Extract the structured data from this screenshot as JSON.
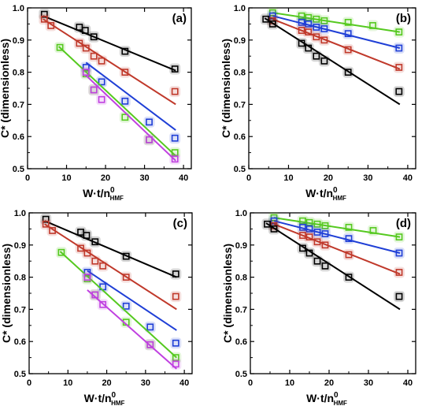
{
  "figure": {
    "width_label": "",
    "note": ""
  },
  "chart_data": [
    {
      "type": "scatter",
      "panel_label": "(a)",
      "xlabel_main": "W·t/n",
      "xlabel_sup": "0",
      "xlabel_sub": "HMF",
      "ylabel": "C* (dimensionless)",
      "xlim": [
        0,
        42
      ],
      "ylim": [
        0.5,
        1.0
      ],
      "xticks": [
        0,
        10,
        20,
        30,
        40
      ],
      "yticks": [
        0.5,
        0.6,
        0.7,
        0.8,
        0.9,
        1.0
      ],
      "series": [
        {
          "color": "#000000",
          "points": [
            [
              4.3,
              0.98
            ],
            [
              13.3,
              0.94
            ],
            [
              14.8,
              0.93
            ],
            [
              17.0,
              0.91
            ],
            [
              25.0,
              0.865
            ],
            [
              37.8,
              0.81
            ]
          ],
          "fit": [
            [
              4,
              0.975
            ],
            [
              38,
              0.805
            ]
          ]
        },
        {
          "color": "#c0392b",
          "points": [
            [
              4.3,
              0.965
            ],
            [
              6.0,
              0.945
            ],
            [
              13.3,
              0.89
            ],
            [
              15.0,
              0.875
            ],
            [
              17.0,
              0.85
            ],
            [
              19.0,
              0.835
            ],
            [
              25.0,
              0.8
            ],
            [
              37.8,
              0.74
            ]
          ],
          "fit": [
            [
              4,
              0.965
            ],
            [
              38,
              0.7
            ]
          ]
        },
        {
          "color": "#1f3fd6",
          "points": [
            [
              15.0,
              0.815
            ],
            [
              19.0,
              0.77
            ],
            [
              25.0,
              0.71
            ],
            [
              31.2,
              0.645
            ],
            [
              37.8,
              0.595
            ]
          ],
          "fit": [
            [
              15,
              0.83
            ],
            [
              38,
              0.62
            ]
          ]
        },
        {
          "color": "#55c91f",
          "points": [
            [
              8.3,
              0.877
            ],
            [
              15.0,
              0.795
            ],
            [
              17.0,
              0.745
            ],
            [
              25.0,
              0.66
            ],
            [
              31.2,
              0.59
            ],
            [
              37.8,
              0.55
            ]
          ],
          "fit": [
            [
              8,
              0.88
            ],
            [
              38,
              0.54
            ]
          ]
        },
        {
          "color": "#c040e0",
          "points": [
            [
              15.0,
              0.8
            ],
            [
              17.0,
              0.745
            ],
            [
              19.0,
              0.715
            ],
            [
              31.2,
              0.59
            ],
            [
              37.8,
              0.53
            ]
          ],
          "fit": [
            [
              15,
              0.79
            ],
            [
              38,
              0.525
            ]
          ]
        }
      ]
    },
    {
      "type": "scatter",
      "panel_label": "(b)",
      "xlabel_main": "W·t/n",
      "xlabel_sup": "0",
      "xlabel_sub": "HMF",
      "ylabel": "C* (dimensionless)",
      "xlim": [
        0,
        42
      ],
      "ylim": [
        0.5,
        1.0
      ],
      "xticks": [
        0,
        10,
        20,
        30,
        40
      ],
      "yticks": [
        0.5,
        0.6,
        0.7,
        0.8,
        0.9,
        1.0
      ],
      "series": [
        {
          "color": "#55c91f",
          "points": [
            [
              6.0,
              0.985
            ],
            [
              13.3,
              0.975
            ],
            [
              15.0,
              0.97
            ],
            [
              17.0,
              0.965
            ],
            [
              19.0,
              0.96
            ],
            [
              25.0,
              0.955
            ],
            [
              31.2,
              0.945
            ],
            [
              37.8,
              0.925
            ]
          ],
          "fit": [
            [
              6,
              0.985
            ],
            [
              38,
              0.925
            ]
          ]
        },
        {
          "color": "#1f3fd6",
          "points": [
            [
              6.0,
              0.975
            ],
            [
              13.3,
              0.955
            ],
            [
              15.0,
              0.95
            ],
            [
              17.0,
              0.94
            ],
            [
              19.0,
              0.935
            ],
            [
              25.0,
              0.92
            ],
            [
              37.8,
              0.875
            ]
          ],
          "fit": [
            [
              6,
              0.975
            ],
            [
              38,
              0.875
            ]
          ]
        },
        {
          "color": "#c0392b",
          "points": [
            [
              6.0,
              0.96
            ],
            [
              13.3,
              0.93
            ],
            [
              15.0,
              0.925
            ],
            [
              17.0,
              0.91
            ],
            [
              19.0,
              0.9
            ],
            [
              25.0,
              0.87
            ],
            [
              37.8,
              0.815
            ]
          ],
          "fit": [
            [
              6,
              0.965
            ],
            [
              38,
              0.81
            ]
          ]
        },
        {
          "color": "#000000",
          "points": [
            [
              4.3,
              0.965
            ],
            [
              6.0,
              0.95
            ],
            [
              13.3,
              0.89
            ],
            [
              15.0,
              0.875
            ],
            [
              17.0,
              0.85
            ],
            [
              19.0,
              0.835
            ],
            [
              25.0,
              0.8
            ],
            [
              37.8,
              0.74
            ]
          ],
          "fit": [
            [
              4,
              0.968
            ],
            [
              38,
              0.7
            ]
          ]
        }
      ]
    },
    {
      "type": "scatter",
      "panel_label": "(c)",
      "xlabel_main": "W·t/n",
      "xlabel_sup": "0",
      "xlabel_sub": "HMF",
      "ylabel": "C* (dimensionless)",
      "xlim": [
        0,
        42
      ],
      "ylim": [
        0.5,
        1.0
      ],
      "xticks": [
        0,
        10,
        20,
        30,
        40
      ],
      "yticks": [
        0.5,
        0.6,
        0.7,
        0.8,
        0.9,
        1.0
      ],
      "series": [
        {
          "color": "#000000",
          "points": [
            [
              4.3,
              0.98
            ],
            [
              13.3,
              0.94
            ],
            [
              14.8,
              0.93
            ],
            [
              17.0,
              0.91
            ],
            [
              25.0,
              0.865
            ],
            [
              37.8,
              0.81
            ]
          ],
          "fit": [
            [
              4,
              0.975
            ],
            [
              38,
              0.8
            ]
          ]
        },
        {
          "color": "#c0392b",
          "points": [
            [
              4.3,
              0.965
            ],
            [
              6.0,
              0.945
            ],
            [
              13.3,
              0.89
            ],
            [
              15.0,
              0.875
            ],
            [
              17.0,
              0.85
            ],
            [
              19.0,
              0.835
            ],
            [
              25.0,
              0.8
            ],
            [
              37.8,
              0.74
            ]
          ],
          "fit": [
            [
              4,
              0.965
            ],
            [
              38,
              0.7
            ]
          ]
        },
        {
          "color": "#1f3fd6",
          "points": [
            [
              15.0,
              0.815
            ],
            [
              19.0,
              0.77
            ],
            [
              25.0,
              0.71
            ],
            [
              31.2,
              0.645
            ],
            [
              37.8,
              0.595
            ]
          ],
          "fit": [
            [
              15,
              0.82
            ],
            [
              38,
              0.635
            ]
          ]
        },
        {
          "color": "#55c91f",
          "points": [
            [
              8.3,
              0.877
            ],
            [
              15.0,
              0.795
            ],
            [
              17.0,
              0.745
            ],
            [
              25.0,
              0.66
            ],
            [
              31.2,
              0.59
            ],
            [
              37.8,
              0.55
            ]
          ],
          "fit": [
            [
              8,
              0.88
            ],
            [
              38,
              0.55
            ]
          ]
        },
        {
          "color": "#c040e0",
          "points": [
            [
              15.0,
              0.8
            ],
            [
              17.0,
              0.745
            ],
            [
              19.0,
              0.715
            ],
            [
              31.2,
              0.59
            ],
            [
              37.8,
              0.53
            ]
          ],
          "fit": [
            [
              15,
              0.76
            ],
            [
              38,
              0.515
            ]
          ]
        }
      ]
    },
    {
      "type": "scatter",
      "panel_label": "(d)",
      "xlabel_main": "W·t/n",
      "xlabel_sup": "0",
      "xlabel_sub": "HMF",
      "ylabel": "C* (dimensionless)",
      "xlim": [
        0,
        42
      ],
      "ylim": [
        0.5,
        1.0
      ],
      "xticks": [
        0,
        10,
        20,
        30,
        40
      ],
      "yticks": [
        0.5,
        0.6,
        0.7,
        0.8,
        0.9,
        1.0
      ],
      "series": [
        {
          "color": "#55c91f",
          "points": [
            [
              6.0,
              0.985
            ],
            [
              13.3,
              0.975
            ],
            [
              15.0,
              0.97
            ],
            [
              17.0,
              0.965
            ],
            [
              19.0,
              0.96
            ],
            [
              25.0,
              0.955
            ],
            [
              31.2,
              0.945
            ],
            [
              37.8,
              0.925
            ]
          ],
          "fit": [
            [
              6,
              0.985
            ],
            [
              38,
              0.925
            ]
          ]
        },
        {
          "color": "#1f3fd6",
          "points": [
            [
              6.0,
              0.975
            ],
            [
              13.3,
              0.955
            ],
            [
              15.0,
              0.95
            ],
            [
              17.0,
              0.94
            ],
            [
              19.0,
              0.935
            ],
            [
              25.0,
              0.92
            ],
            [
              37.8,
              0.875
            ]
          ],
          "fit": [
            [
              6,
              0.975
            ],
            [
              38,
              0.875
            ]
          ]
        },
        {
          "color": "#c0392b",
          "points": [
            [
              6.0,
              0.96
            ],
            [
              13.3,
              0.93
            ],
            [
              15.0,
              0.925
            ],
            [
              17.0,
              0.91
            ],
            [
              19.0,
              0.9
            ],
            [
              25.0,
              0.87
            ],
            [
              37.8,
              0.815
            ]
          ],
          "fit": [
            [
              6,
              0.965
            ],
            [
              38,
              0.81
            ]
          ]
        },
        {
          "color": "#000000",
          "points": [
            [
              4.3,
              0.965
            ],
            [
              6.0,
              0.95
            ],
            [
              13.3,
              0.89
            ],
            [
              15.0,
              0.875
            ],
            [
              17.0,
              0.85
            ],
            [
              19.0,
              0.835
            ],
            [
              25.0,
              0.8
            ],
            [
              37.8,
              0.74
            ]
          ],
          "fit": [
            [
              4,
              0.968
            ],
            [
              38,
              0.7
            ]
          ]
        }
      ]
    }
  ]
}
